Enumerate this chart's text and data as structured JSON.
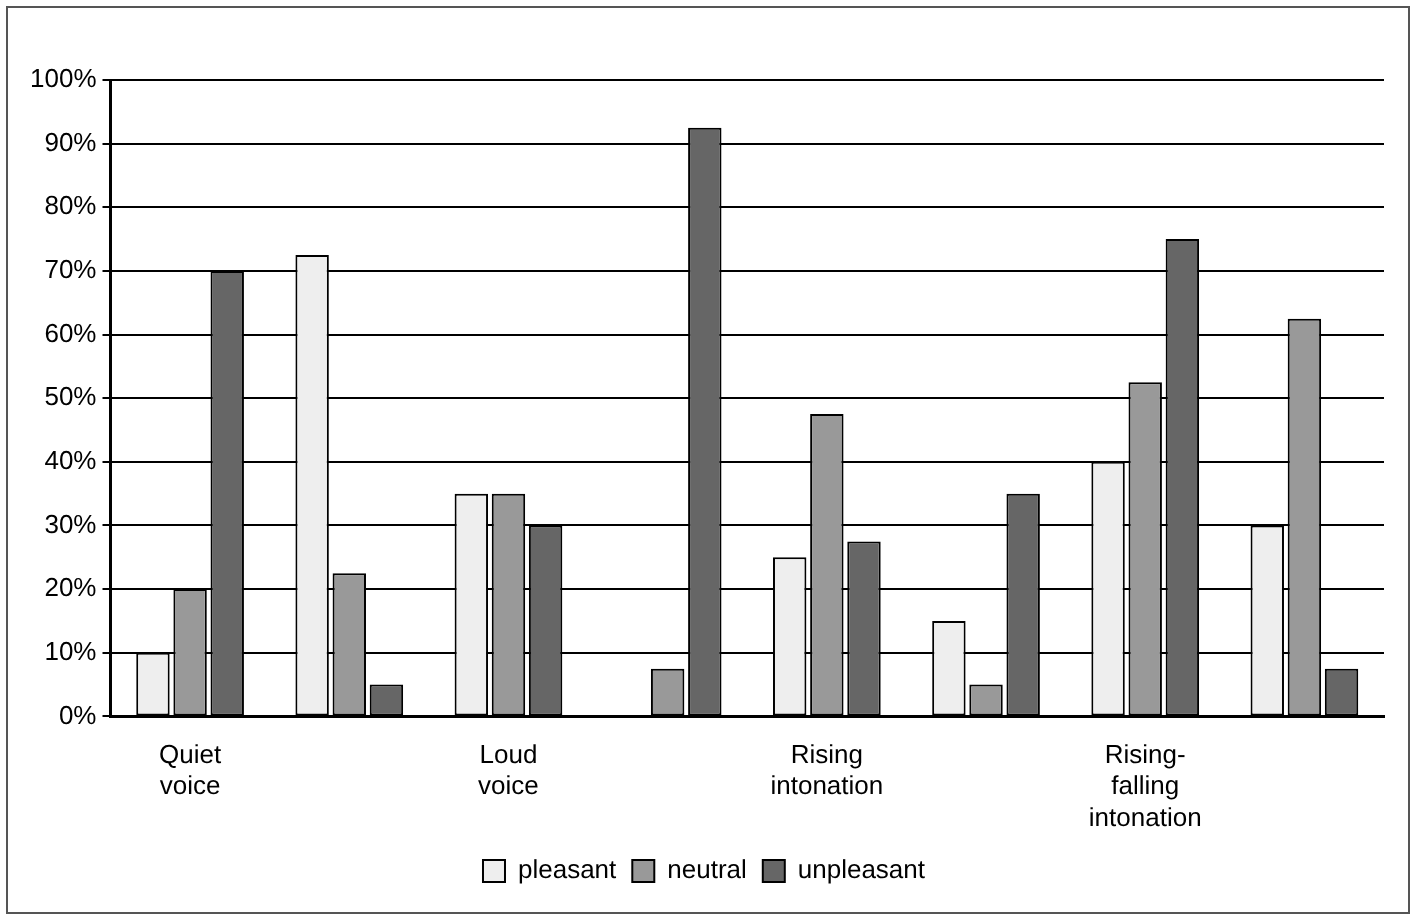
{
  "chart_data": {
    "type": "bar",
    "categories": [
      "Quiet voice",
      null,
      "Loud voice",
      null,
      "Rising intonation",
      null,
      "Rising-falling intonation",
      null
    ],
    "series": [
      {
        "name": "pleasant",
        "color": "#eeeeee",
        "values": [
          10,
          72.5,
          35,
          0,
          25,
          15,
          40,
          30
        ]
      },
      {
        "name": "neutral",
        "color": "#999999",
        "values": [
          20,
          22.5,
          35,
          7.5,
          47.5,
          5,
          52.5,
          62.5
        ]
      },
      {
        "name": "unpleasant",
        "color": "#666666",
        "values": [
          70,
          5,
          30,
          92.5,
          27.5,
          35,
          75,
          7.5
        ]
      }
    ],
    "ylim": [
      0,
      100
    ],
    "yticks": [
      {
        "value": 0,
        "label": "0%"
      },
      {
        "value": 10,
        "label": "10%"
      },
      {
        "value": 20,
        "label": "20%"
      },
      {
        "value": 30,
        "label": "30%"
      },
      {
        "value": 40,
        "label": "40%"
      },
      {
        "value": 50,
        "label": "50%"
      },
      {
        "value": 60,
        "label": "60%"
      },
      {
        "value": 70,
        "label": "70%"
      },
      {
        "value": 80,
        "label": "80%"
      },
      {
        "value": 90,
        "label": "90%"
      },
      {
        "value": 100,
        "label": "100%"
      }
    ],
    "grid": "y",
    "legend": "bottom"
  }
}
